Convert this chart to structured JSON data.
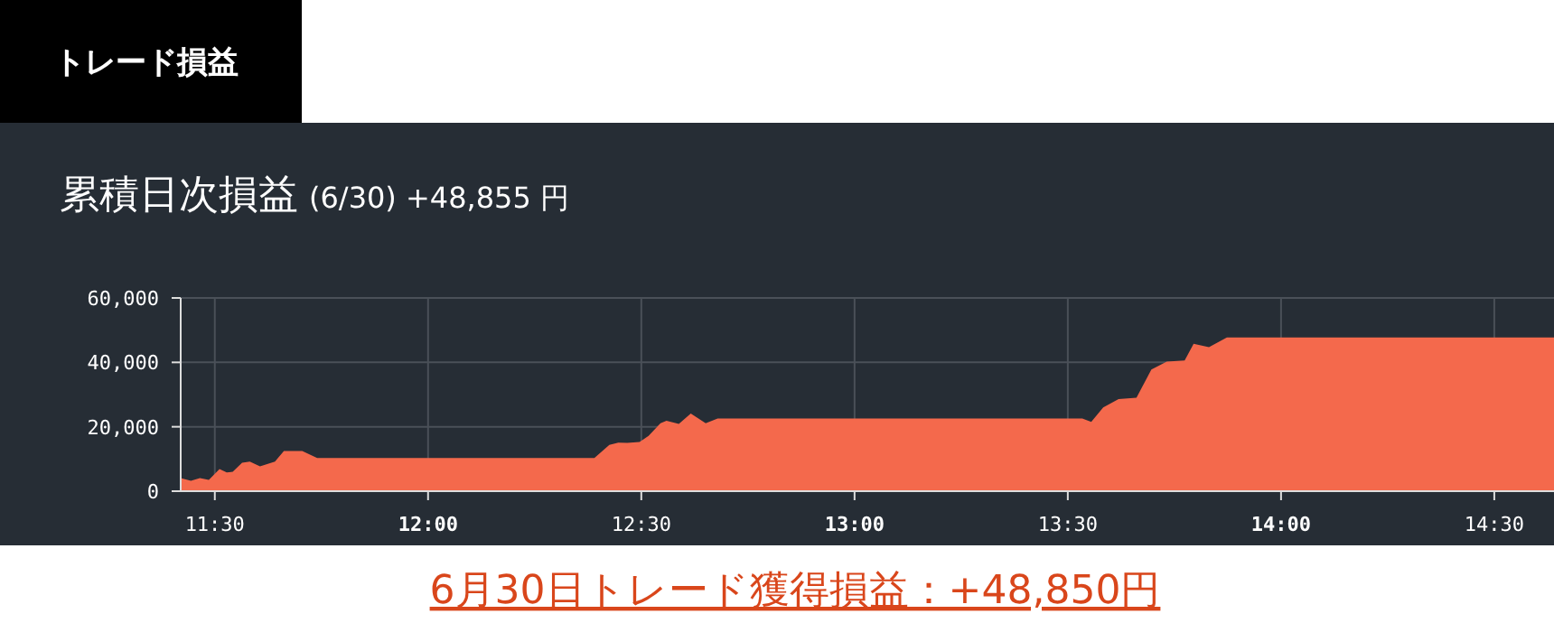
{
  "chart_data": {
    "type": "area",
    "title": "累積日次損益",
    "subtitle": "(6/30) +48,855 円",
    "annotations": [
      "トレード損益",
      "6月30日トレード獲得損益：+48,850円"
    ],
    "x": [
      11.42,
      11.444,
      11.465,
      11.486,
      11.511,
      11.528,
      11.542,
      11.564,
      11.582,
      11.606,
      11.641,
      11.662,
      11.705,
      11.74,
      12.39,
      12.425,
      12.446,
      12.467,
      12.496,
      12.517,
      12.545,
      12.559,
      12.588,
      12.616,
      12.651,
      12.679,
      13.534,
      13.555,
      13.583,
      13.619,
      13.661,
      13.696,
      13.732,
      13.774,
      13.795,
      13.831,
      13.873,
      14.64
    ],
    "values": [
      4100,
      3200,
      4100,
      3500,
      6900,
      5800,
      6000,
      8800,
      9200,
      7700,
      9200,
      12500,
      12500,
      10300,
      10300,
      14400,
      15100,
      15000,
      15300,
      17200,
      21100,
      21900,
      20900,
      24100,
      21100,
      22600,
      22600,
      21500,
      26000,
      28600,
      29000,
      37800,
      40200,
      40600,
      45800,
      44700,
      47700,
      47700
    ],
    "color": "#f4694c",
    "xlim": [
      11.42,
      14.64
    ],
    "xticks": [
      {
        "value": 11.5,
        "label": "11:30"
      },
      {
        "value": 12,
        "label": "12:00"
      },
      {
        "value": 12.5,
        "label": "12:30"
      },
      {
        "value": 13,
        "label": "13:00"
      },
      {
        "value": 13.5,
        "label": "13:30"
      },
      {
        "value": 14,
        "label": "14:00"
      },
      {
        "value": 14.5,
        "label": "14:30"
      }
    ],
    "ylim": [
      0,
      60000
    ],
    "yticks": [
      {
        "value": 0,
        "label": "0"
      },
      {
        "value": 20000,
        "label": "20,000"
      },
      {
        "value": 40000,
        "label": "40,000"
      },
      {
        "value": 60000,
        "label": "60,000"
      }
    ],
    "grid": true
  }
}
